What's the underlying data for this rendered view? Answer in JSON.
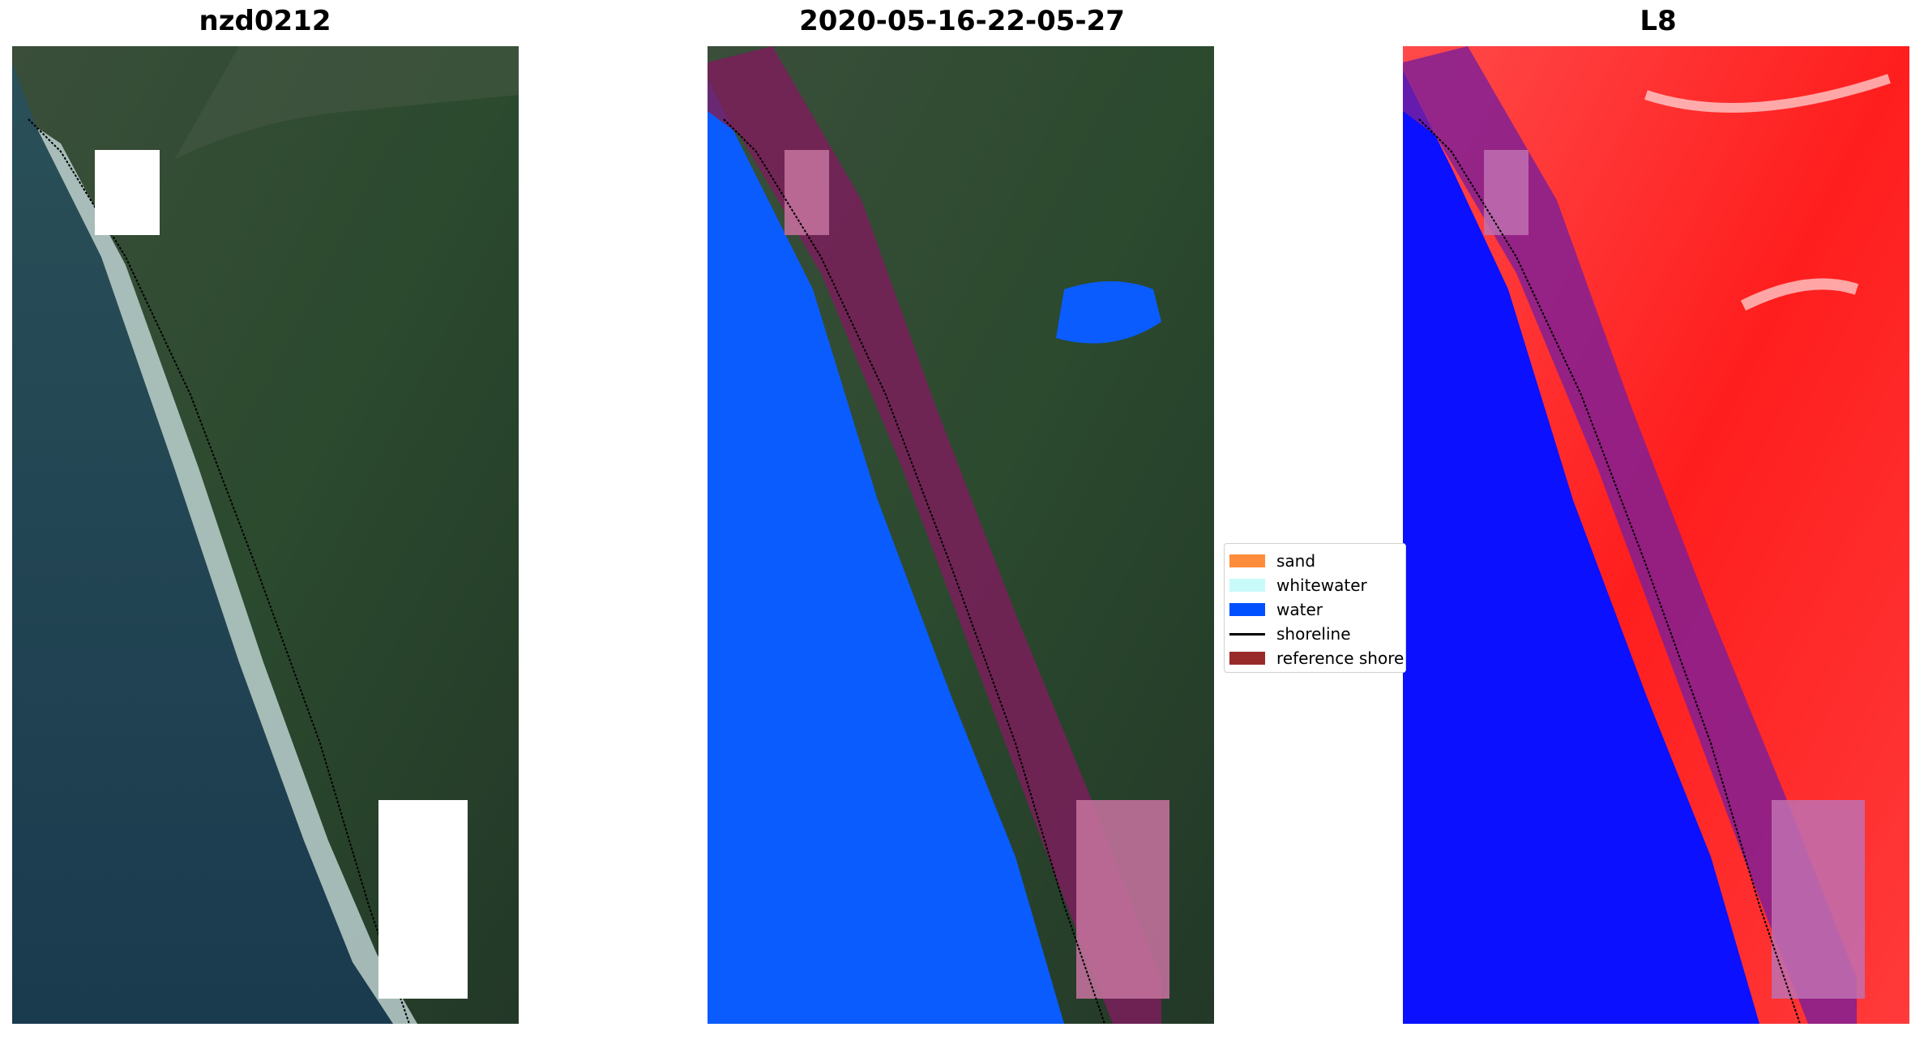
{
  "panels": {
    "left": {
      "title": "nzd0212"
    },
    "middle": {
      "title": "2020-05-16-22-05-27"
    },
    "right": {
      "title": "L8"
    }
  },
  "legend": {
    "items": [
      {
        "label": "sand",
        "color": "#ff8c3a"
      },
      {
        "label": "whitewater",
        "color": "#c8fafa"
      },
      {
        "label": "water",
        "color": "#0050ff"
      },
      {
        "label": "shoreline",
        "color": "#000000"
      },
      {
        "label": "reference shoreline",
        "color": "#992a2a"
      }
    ]
  },
  "colors": {
    "sea": "#1f4150",
    "land": "#2c4a30",
    "classified_water": "#0a5cff",
    "buffer": "#7a1e5a",
    "index_high": "#ff2020",
    "index_low": "#0b10ff",
    "cloud_mask": "#ffffff"
  }
}
